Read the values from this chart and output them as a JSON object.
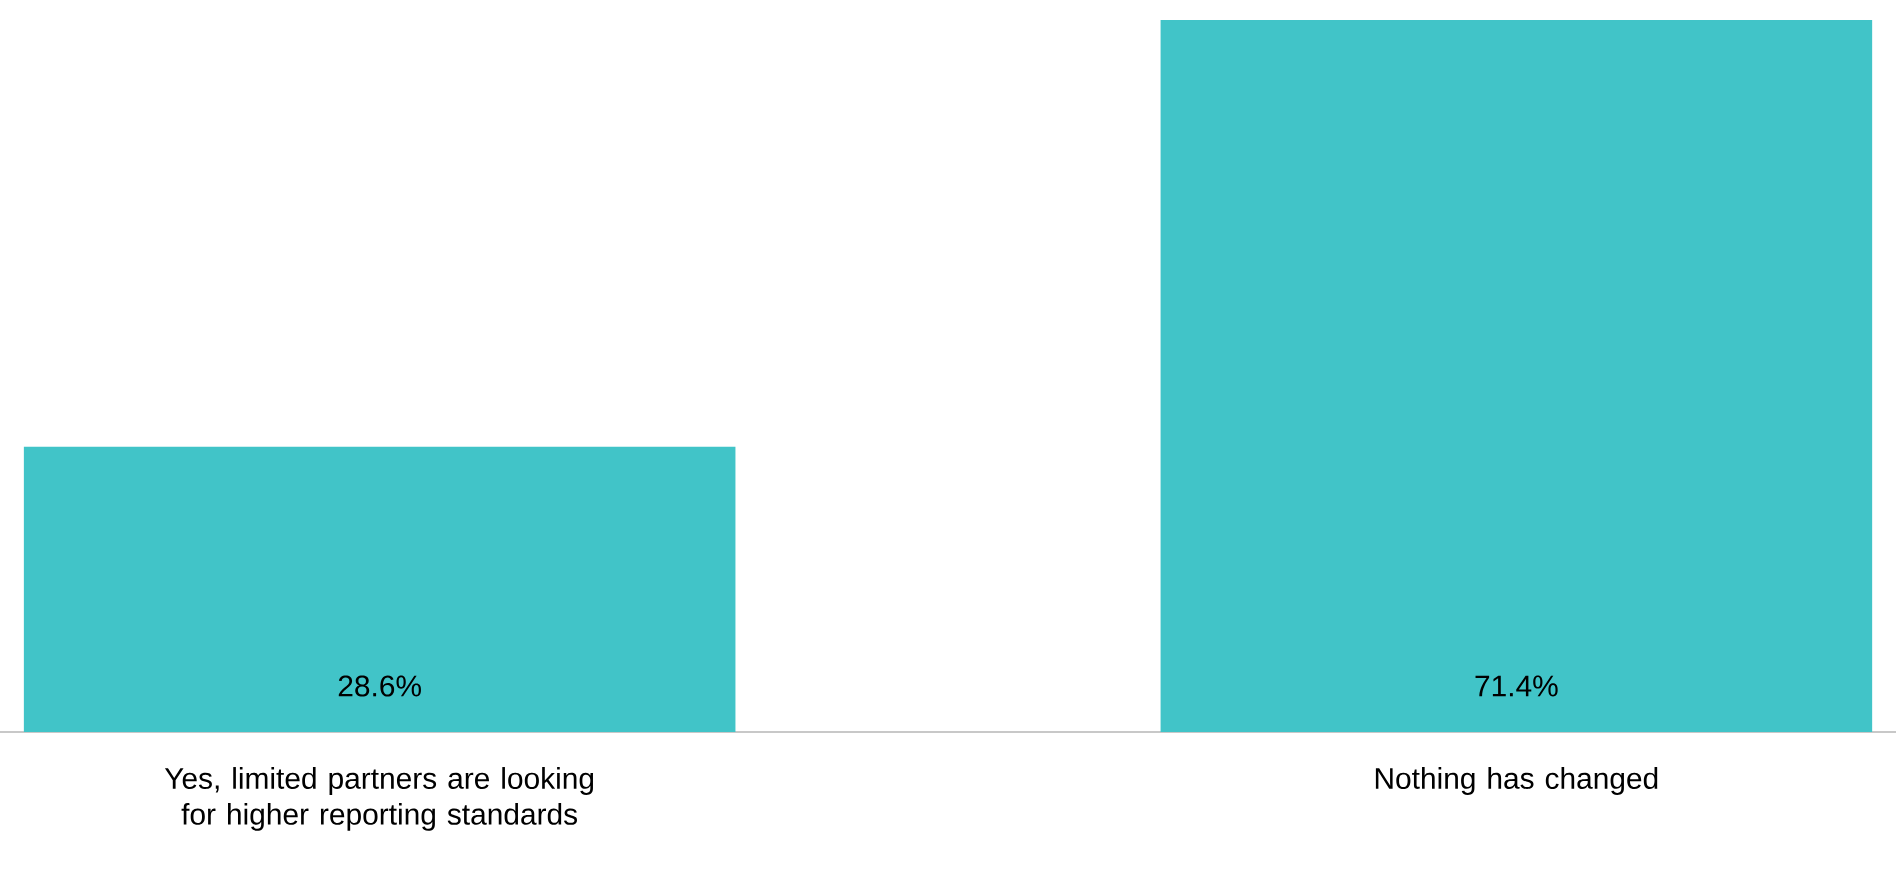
{
  "chart_data": {
    "type": "bar",
    "categories": [
      "Yes, limited partners are looking for higher reporting standards",
      "Nothing has changed"
    ],
    "values": [
      28.6,
      71.4
    ],
    "value_labels": [
      "28.6%",
      "71.4%"
    ],
    "color": "#41c4c8"
  }
}
